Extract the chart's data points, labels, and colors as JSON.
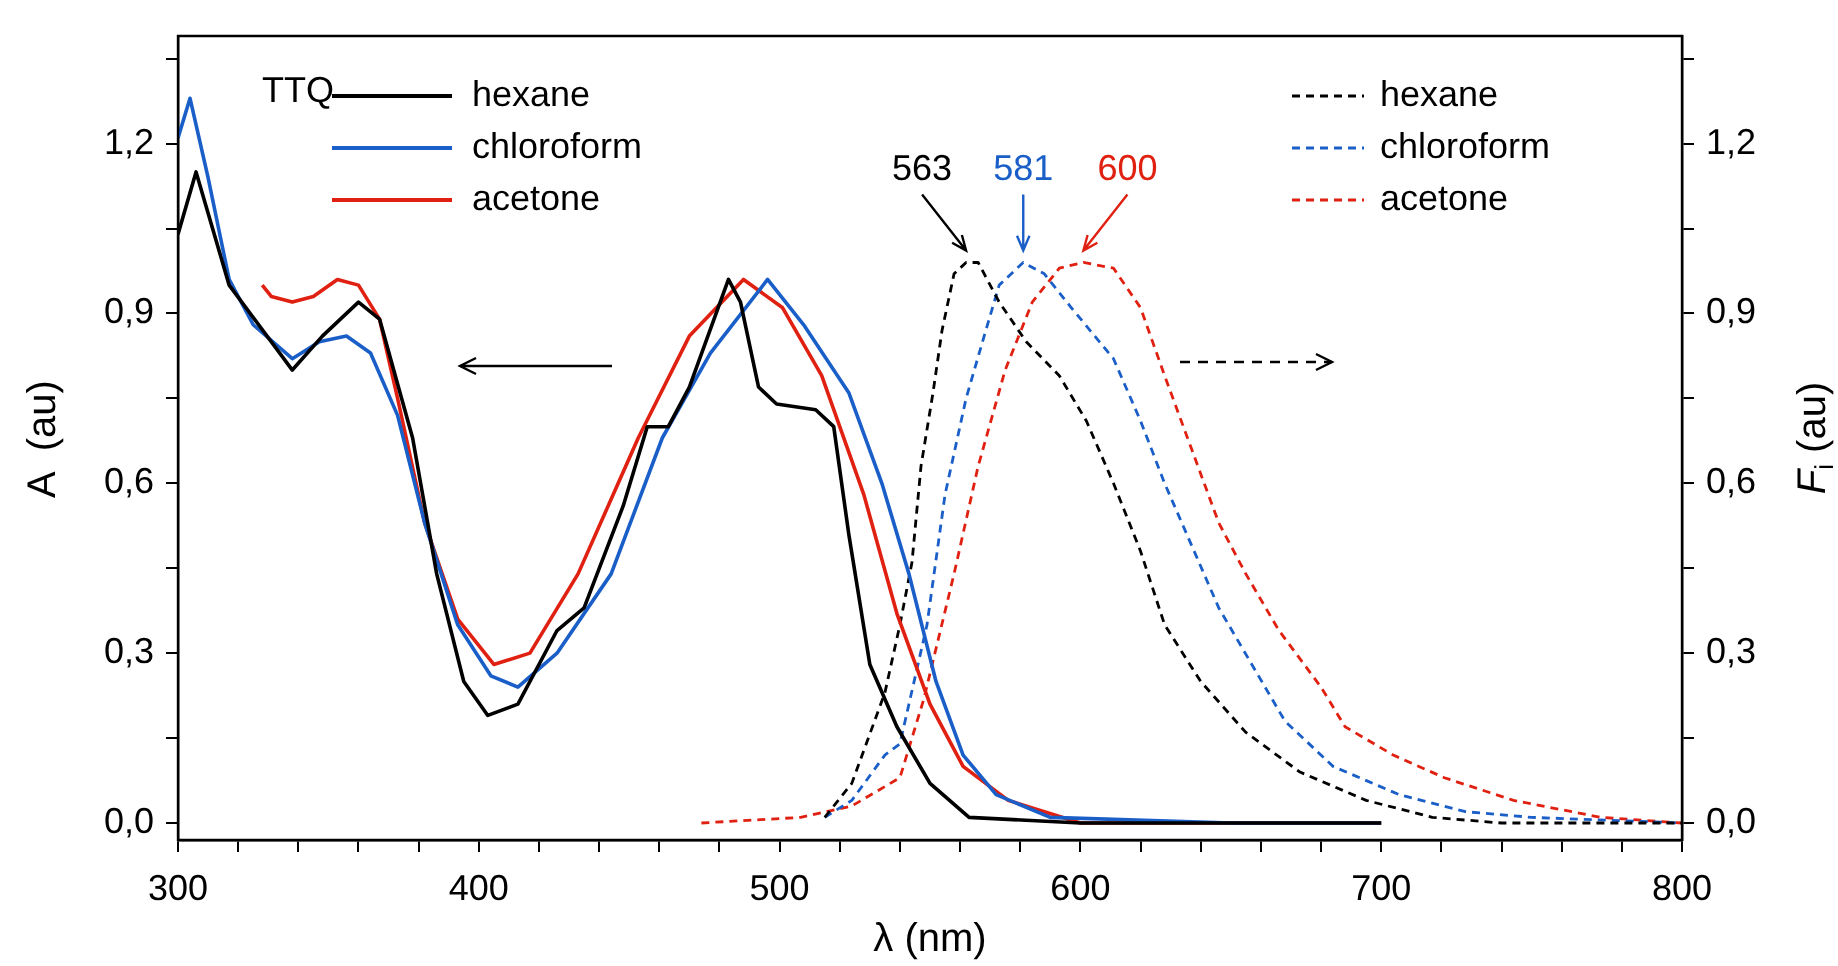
{
  "chart_data": {
    "type": "line",
    "xlabel": "λ (nm)",
    "ylabel": "A  (au)",
    "y2label": "F$_{i}$ (au)",
    "legend_title": "TTQ",
    "legend": "top",
    "grid": false,
    "marker": "none",
    "xlim": [
      300,
      800
    ],
    "ylim": [
      -0.03,
      1.39
    ],
    "y2lim": [
      -0.03,
      1.39
    ],
    "xticks": [
      300,
      {
        "value": 320,
        "label": null
      },
      {
        "value": 340,
        "label": null
      },
      {
        "value": 360,
        "label": null
      },
      {
        "value": 380,
        "label": null
      },
      400,
      {
        "value": 420,
        "label": null
      },
      {
        "value": 440,
        "label": null
      },
      {
        "value": 460,
        "label": null
      },
      {
        "value": 480,
        "label": null
      },
      500,
      {
        "value": 520,
        "label": null
      },
      {
        "value": 540,
        "label": null
      },
      {
        "value": 560,
        "label": null
      },
      {
        "value": 580,
        "label": null
      },
      600,
      {
        "value": 620,
        "label": null
      },
      {
        "value": 640,
        "label": null
      },
      {
        "value": 660,
        "label": null
      },
      {
        "value": 680,
        "label": null
      },
      700,
      {
        "value": 720,
        "label": null
      },
      {
        "value": 740,
        "label": null
      },
      {
        "value": 760,
        "label": null
      },
      {
        "value": 780,
        "label": null
      },
      800
    ],
    "yticks": [
      {
        "value": 0,
        "label": "0,0"
      },
      {
        "value": 0.15,
        "label": null
      },
      {
        "value": 0.3,
        "label": "0,3"
      },
      {
        "value": 0.45,
        "label": null
      },
      {
        "value": 0.6,
        "label": "0,6"
      },
      {
        "value": 0.75,
        "label": null
      },
      {
        "value": 0.9,
        "label": "0,9"
      },
      {
        "value": 1.05,
        "label": null
      },
      {
        "value": 1.2,
        "label": "1,2"
      },
      {
        "value": 1.35,
        "label": null
      }
    ],
    "y2ticks": [
      {
        "value": 0,
        "label": "0,0"
      },
      {
        "value": 0.15,
        "label": null
      },
      {
        "value": 0.3,
        "label": "0,3"
      },
      {
        "value": 0.45,
        "label": null
      },
      {
        "value": 0.6,
        "label": "0,6"
      },
      {
        "value": 0.75,
        "label": null
      },
      {
        "value": 0.9,
        "label": "0,9"
      },
      {
        "value": 1.05,
        "label": null
      },
      {
        "value": 1.2,
        "label": "1,2"
      },
      {
        "value": 1.35,
        "label": null
      }
    ],
    "annotations": [
      {
        "text": "563",
        "x": 562,
        "y": 0.99
      },
      {
        "text": "581",
        "x": 581,
        "y": 0.99
      },
      {
        "text": "600",
        "x": 601,
        "y": 0.99
      }
    ],
    "series": [
      {
        "name": "hexane",
        "color": "#000000",
        "axis": "y",
        "line_style": "solid",
        "x": [
          300,
          306,
          317,
          338,
          348,
          360,
          367,
          378,
          386,
          395,
          403,
          413,
          426,
          435,
          448,
          456,
          463,
          470,
          483,
          487,
          493,
          499,
          512,
          518,
          523,
          530,
          539,
          550,
          563,
          600,
          700
        ],
        "values": [
          1.04,
          1.15,
          0.95,
          0.8,
          0.86,
          0.92,
          0.89,
          0.68,
          0.44,
          0.25,
          0.19,
          0.21,
          0.34,
          0.38,
          0.56,
          0.7,
          0.7,
          0.77,
          0.96,
          0.92,
          0.77,
          0.74,
          0.73,
          0.7,
          0.51,
          0.28,
          0.17,
          0.07,
          0.01,
          0.0,
          0.0
        ]
      },
      {
        "name": "chloroform",
        "color": "#1a5ec8",
        "axis": "y",
        "line_style": "solid",
        "x": [
          300,
          304,
          310,
          317,
          325,
          338,
          347,
          356,
          364,
          373,
          382,
          393,
          404,
          413,
          426,
          444,
          461,
          477,
          496,
          508,
          523,
          534,
          543,
          552,
          561,
          572,
          590,
          650,
          700
        ],
        "values": [
          1.21,
          1.28,
          1.14,
          0.96,
          0.88,
          0.82,
          0.85,
          0.86,
          0.83,
          0.72,
          0.53,
          0.35,
          0.26,
          0.24,
          0.3,
          0.44,
          0.68,
          0.83,
          0.96,
          0.88,
          0.76,
          0.6,
          0.44,
          0.25,
          0.12,
          0.05,
          0.01,
          0.0,
          0.0
        ]
      },
      {
        "name": "acetone",
        "color": "#e02010",
        "axis": "y",
        "line_style": "solid",
        "x": [
          328,
          331,
          338,
          345,
          353,
          360,
          367,
          373,
          382,
          393,
          405,
          417,
          433,
          453,
          470,
          488,
          501,
          514,
          528,
          539,
          550,
          561,
          576,
          600,
          700
        ],
        "values": [
          0.95,
          0.93,
          0.92,
          0.93,
          0.96,
          0.95,
          0.89,
          0.75,
          0.53,
          0.36,
          0.28,
          0.3,
          0.44,
          0.68,
          0.86,
          0.96,
          0.91,
          0.79,
          0.58,
          0.37,
          0.21,
          0.1,
          0.04,
          0.0,
          0.0
        ]
      },
      {
        "name": "hexane",
        "color": "#000000",
        "axis": "y2",
        "line_style": "dashed",
        "x": [
          515,
          524,
          535,
          540,
          544,
          547,
          551,
          554,
          558,
          562,
          566,
          573,
          582,
          593,
          602,
          611,
          620,
          628,
          640,
          655,
          673,
          695,
          717,
          740,
          800
        ],
        "values": [
          0.01,
          0.07,
          0.23,
          0.35,
          0.46,
          0.63,
          0.76,
          0.87,
          0.97,
          0.99,
          0.99,
          0.92,
          0.85,
          0.79,
          0.71,
          0.6,
          0.48,
          0.35,
          0.25,
          0.16,
          0.09,
          0.04,
          0.01,
          0.0,
          0.0
        ]
      },
      {
        "name": "chloroform",
        "color": "#1a5ec8",
        "axis": "y2",
        "line_style": "dashed",
        "x": [
          515,
          524,
          535,
          540,
          549,
          555,
          562,
          568,
          573,
          581,
          588,
          597,
          611,
          620,
          628,
          637,
          646,
          657,
          668,
          684,
          706,
          728,
          750,
          800
        ],
        "values": [
          0.01,
          0.04,
          0.12,
          0.14,
          0.35,
          0.58,
          0.75,
          0.86,
          0.95,
          0.99,
          0.97,
          0.91,
          0.82,
          0.71,
          0.6,
          0.49,
          0.38,
          0.28,
          0.18,
          0.1,
          0.05,
          0.02,
          0.01,
          0.0
        ]
      },
      {
        "name": "acetone",
        "color": "#e02010",
        "axis": "y2",
        "line_style": "dashed",
        "x": [
          474,
          507,
          524,
          540,
          548,
          558,
          566,
          575,
          584,
          593,
          601,
          611,
          620,
          628,
          637,
          646,
          655,
          666,
          680,
          688,
          704,
          721,
          744,
          773,
          800
        ],
        "values": [
          0.0,
          0.01,
          0.03,
          0.08,
          0.22,
          0.44,
          0.63,
          0.8,
          0.92,
          0.98,
          0.99,
          0.98,
          0.91,
          0.79,
          0.66,
          0.53,
          0.44,
          0.34,
          0.24,
          0.17,
          0.12,
          0.08,
          0.04,
          0.01,
          0.0
        ]
      }
    ]
  }
}
